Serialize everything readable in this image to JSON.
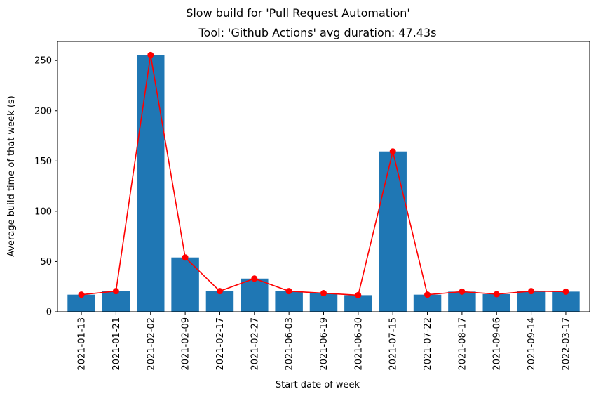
{
  "chart_data": {
    "type": "bar",
    "suptitle": "Slow build for 'Pull Request Automation'",
    "title": "Tool: 'Github Actions' avg duration: 47.43s",
    "xlabel": "Start date of week",
    "ylabel": "Average build time of that week (s)",
    "categories": [
      "2021-01-13",
      "2021-01-21",
      "2021-02-02",
      "2021-02-09",
      "2021-02-17",
      "2021-02-27",
      "2021-06-03",
      "2021-06-19",
      "2021-06-30",
      "2021-07-15",
      "2021-07-22",
      "2021-08-17",
      "2021-09-06",
      "2021-09-14",
      "2022-03-17"
    ],
    "values": [
      17,
      20.5,
      255.5,
      54,
      20.5,
      33,
      20.5,
      18.5,
      16.5,
      159.5,
      17,
      20,
      17.5,
      20.5,
      20
    ],
    "ylim": [
      0,
      269
    ],
    "yticks": [
      0,
      50,
      100,
      150,
      200,
      250
    ],
    "grid": false,
    "colors": {
      "bar": "#1f77b4",
      "line": "#ff0000",
      "marker": "#ff0000"
    }
  }
}
